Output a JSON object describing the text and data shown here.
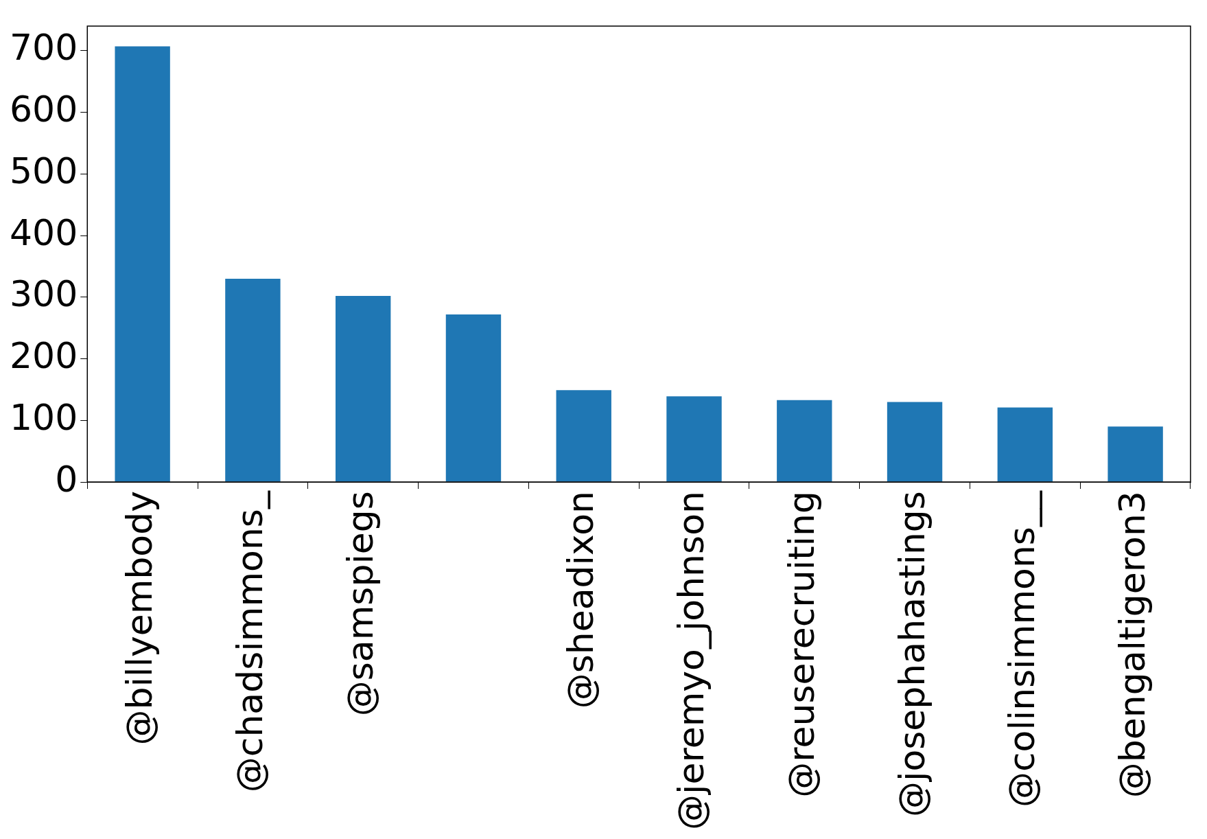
{
  "chart_data": {
    "type": "bar",
    "categories": [
      "@billyembody",
      "@chadsimmons_",
      "@samspiegs",
      null,
      "@sheadixon",
      "@jeremyo_johnson",
      "@reuserecruiting",
      "@josephahastings",
      "@colinsimmons__",
      "@bengaltigeron3"
    ],
    "values": [
      707,
      330,
      302,
      272,
      149,
      139,
      133,
      130,
      121,
      90
    ],
    "color": "#1f77b4",
    "ylim": [
      0,
      740
    ],
    "yticks": [
      0,
      100,
      200,
      300,
      400,
      500,
      600,
      700
    ],
    "grid": false,
    "legend": false
  }
}
